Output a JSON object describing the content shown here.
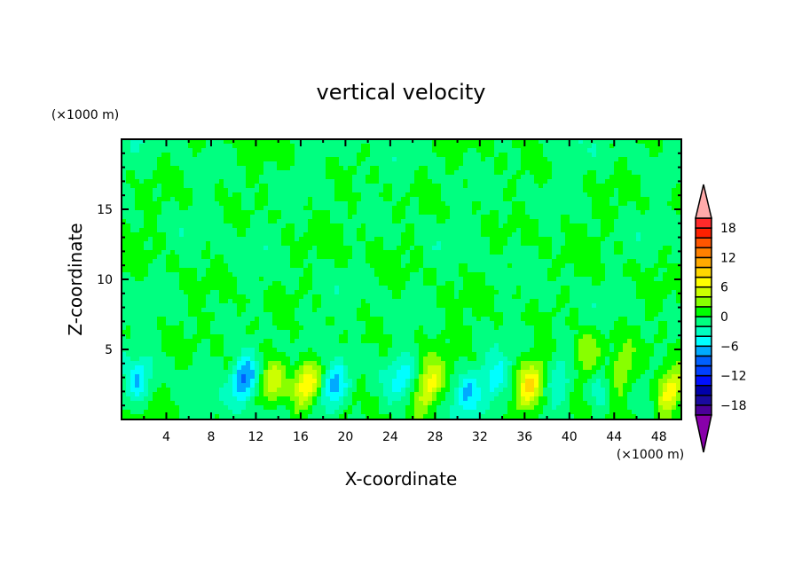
{
  "chart_data": {
    "type": "heatmap",
    "subtype": "filled-contour",
    "title": "vertical velocity",
    "xlabel": "X-coordinate",
    "ylabel": "Z-coordinate",
    "x_unit": "(×1000 m)",
    "y_unit": "(×1000 m)",
    "xlim": [
      0,
      50
    ],
    "ylim": [
      0,
      20
    ],
    "x_ticks": [
      4,
      8,
      12,
      16,
      20,
      24,
      28,
      32,
      36,
      40,
      44,
      48
    ],
    "y_ticks": [
      5,
      10,
      15
    ],
    "colorbar": {
      "levels": [
        -20,
        -18,
        -16,
        -14,
        -12,
        -10,
        -8,
        -6,
        -4,
        -2,
        0,
        2,
        4,
        6,
        8,
        10,
        12,
        14,
        16,
        18,
        20
      ],
      "tick_labels": [
        "18",
        "12",
        "6",
        "0",
        "-6",
        "-12",
        "-18"
      ],
      "tick_values": [
        18,
        12,
        6,
        0,
        -6,
        -12,
        -18
      ],
      "colors": [
        "#4b0099",
        "#1a0aa0",
        "#0000aa",
        "#0010ff",
        "#0040ff",
        "#0060ff",
        "#00aaff",
        "#00ffff",
        "#00ffc0",
        "#00ff80",
        "#00ff00",
        "#88ff00",
        "#ccff00",
        "#ffff00",
        "#ffd700",
        "#ffaa00",
        "#ff8000",
        "#ff5500",
        "#ff2000",
        "#ff2a2a"
      ],
      "over_color": "#ffaaaa",
      "under_color": "#8800aa"
    },
    "features": [
      {
        "x": 13.5,
        "z": 2.6,
        "value": 5.5
      },
      {
        "x": 16.5,
        "z": 2.5,
        "value": 8.2
      },
      {
        "x": 27.5,
        "z": 2.4,
        "value": 7.2
      },
      {
        "x": 36.5,
        "z": 2.5,
        "value": 7.8
      },
      {
        "x": 41.5,
        "z": 4.6,
        "value": 5.0
      },
      {
        "x": 44.5,
        "z": 3.2,
        "value": 4.5
      },
      {
        "x": 49.0,
        "z": 2.0,
        "value": 8.5
      },
      {
        "x": 1.5,
        "z": 2.6,
        "value": -5.5
      },
      {
        "x": 11.0,
        "z": 3.0,
        "value": -9.0
      },
      {
        "x": 19.0,
        "z": 2.2,
        "value": -8.0
      },
      {
        "x": 25.0,
        "z": 3.0,
        "value": -4.5
      },
      {
        "x": 31.0,
        "z": 2.0,
        "value": -4.5
      },
      {
        "x": 33.5,
        "z": 3.0,
        "value": -5.0
      },
      {
        "x": 39.0,
        "z": 2.5,
        "value": -3.5
      },
      {
        "x": 43.0,
        "z": 2.0,
        "value": -3.5
      }
    ]
  }
}
